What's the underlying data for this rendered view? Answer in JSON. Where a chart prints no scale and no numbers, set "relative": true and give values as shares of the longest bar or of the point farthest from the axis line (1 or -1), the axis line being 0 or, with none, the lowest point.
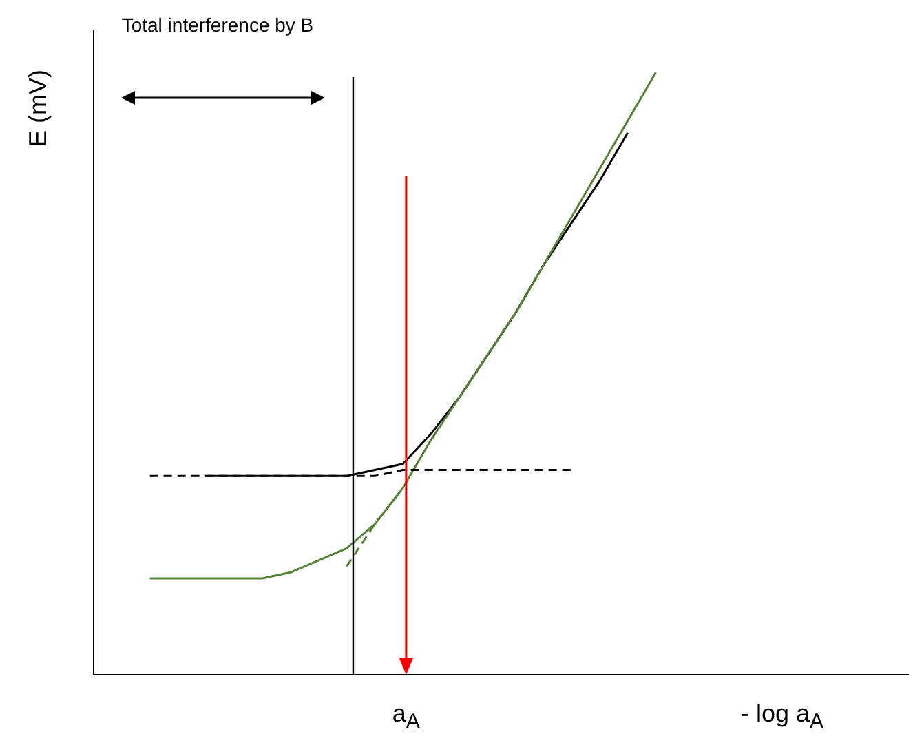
{
  "chart_data": {
    "type": "line",
    "relative": true,
    "grid": false,
    "marker": "none",
    "ylabel": "E (mV)",
    "xlabel": "- log a$_{A}$",
    "annotations": [
      "Total interference by B",
      "a$_{A}$"
    ],
    "categories": [
      null,
      null,
      null,
      null,
      null,
      null,
      null,
      null,
      null,
      null,
      null,
      null,
      null,
      null,
      null,
      null,
      null,
      null,
      null,
      null,
      null,
      null,
      null,
      null,
      null,
      null,
      null,
      null,
      null,
      null
    ],
    "series": [
      {
        "color": "#000000",
        "values": [
          null,
          null,
          null,
          null,
          0.33,
          0.33,
          0.33,
          0.33,
          0.33,
          0.33,
          0.34,
          0.35,
          0.4,
          0.46,
          0.53,
          0.6,
          0.68,
          0.75,
          0.82,
          0.9,
          null,
          null,
          null,
          null,
          null,
          null,
          null,
          null,
          null,
          null
        ]
      },
      {
        "color": "#548235",
        "values": [
          null,
          null,
          0.16,
          0.16,
          0.16,
          0.16,
          0.16,
          0.17,
          0.19,
          0.21,
          0.25,
          0.31,
          0.39,
          0.46,
          0.53,
          0.6,
          0.68,
          0.76,
          0.84,
          0.92,
          1.0,
          null,
          null,
          null,
          null,
          null,
          null,
          null,
          null,
          null
        ]
      },
      {
        "color": "#548235",
        "line_style": "dashed",
        "values": [
          null,
          null,
          null,
          null,
          null,
          null,
          null,
          null,
          null,
          0.18,
          0.25,
          0.31,
          null,
          null,
          null,
          null,
          null,
          null,
          null,
          null,
          null,
          null,
          null,
          null,
          null,
          null,
          null,
          null,
          null,
          null
        ]
      },
      {
        "color": "#000000",
        "line_style": "dashed",
        "values": [
          null,
          null,
          0.33,
          0.33,
          0.33,
          0.33,
          0.33,
          0.33,
          0.33,
          0.33,
          0.33,
          0.34,
          0.34,
          0.34,
          0.34,
          0.34,
          0.34,
          0.34,
          null,
          null,
          null,
          null,
          null,
          null,
          null,
          null,
          null,
          null,
          null,
          null
        ]
      }
    ]
  }
}
